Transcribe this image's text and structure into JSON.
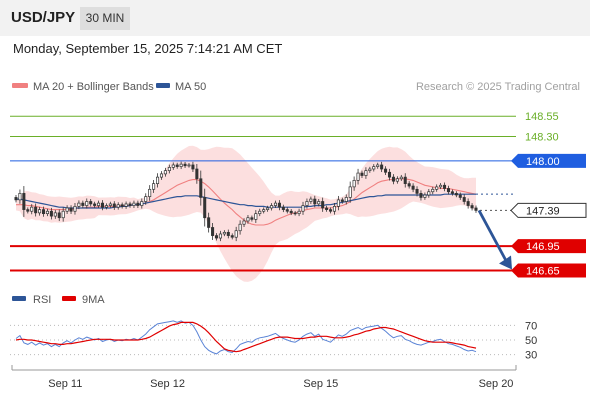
{
  "header": {
    "pair": "USD/JPY",
    "timeframe": "30 MIN"
  },
  "timestamp": "Monday, September 15, 2025 7:14:21 AM CET",
  "legend": {
    "ma20_label": "MA 20 + Bollinger Bands",
    "ma50_label": "MA 50",
    "source": "Research © 2025 Trading Central"
  },
  "rsi_legend": {
    "rsi_label": "RSI",
    "ma_label": "9MA"
  },
  "colors": {
    "ma20": "#f08080",
    "ma50": "#2d5597",
    "bands": "#fcd9d9",
    "target": "#6aaf28",
    "pivot": "#1f5ee0",
    "support": "#e00000",
    "arrow": "#2d5597",
    "candle": "#333333"
  },
  "chart_data": [
    {
      "type": "candlestick",
      "instrument": "USD/JPY",
      "interval": "30 MIN",
      "x_ticks": [
        "Sep 11",
        "Sep 12",
        "Sep 15",
        "Sep 20"
      ],
      "ylim": [
        146.57,
        148.75
      ],
      "levels": [
        {
          "label": "148.55",
          "value": 148.55,
          "role": "target"
        },
        {
          "label": "148.30",
          "value": 148.3,
          "role": "target"
        },
        {
          "label": "148.00",
          "value": 148.0,
          "role": "pivot"
        },
        {
          "label": "147.39",
          "value": 147.39,
          "role": "last"
        },
        {
          "label": "146.95",
          "value": 146.95,
          "role": "support"
        },
        {
          "label": "146.65",
          "value": 146.65,
          "role": "support"
        }
      ],
      "close": [
        147.52,
        147.6,
        147.4,
        147.38,
        147.43,
        147.36,
        147.4,
        147.35,
        147.38,
        147.32,
        147.36,
        147.3,
        147.38,
        147.42,
        147.38,
        147.44,
        147.48,
        147.45,
        147.5,
        147.47,
        147.45,
        147.48,
        147.43,
        147.45,
        147.47,
        147.43,
        147.46,
        147.44,
        147.47,
        147.45,
        147.48,
        147.45,
        147.5,
        147.56,
        147.65,
        147.72,
        147.8,
        147.84,
        147.88,
        147.92,
        147.95,
        147.93,
        147.96,
        147.94,
        147.95,
        147.9,
        147.78,
        147.55,
        147.3,
        147.18,
        147.08,
        147.05,
        147.1,
        147.12,
        147.08,
        147.06,
        147.14,
        147.22,
        147.26,
        147.3,
        147.28,
        147.35,
        147.38,
        147.4,
        147.42,
        147.45,
        147.48,
        147.43,
        147.4,
        147.38,
        147.36,
        147.35,
        147.38,
        147.45,
        147.5,
        147.53,
        147.47,
        147.5,
        147.42,
        147.4,
        147.38,
        147.44,
        147.52,
        147.5,
        147.55,
        147.68,
        147.76,
        147.85,
        147.82,
        147.88,
        147.9,
        147.93,
        147.95,
        147.9,
        147.86,
        147.8,
        147.75,
        147.78,
        147.8,
        147.72,
        147.69,
        147.65,
        147.6,
        147.55,
        147.58,
        147.62,
        147.65,
        147.68,
        147.7,
        147.66,
        147.62,
        147.6,
        147.58,
        147.55,
        147.5,
        147.45,
        147.42,
        147.39
      ],
      "ma20": [
        147.46,
        147.46,
        147.46,
        147.45,
        147.45,
        147.44,
        147.43,
        147.42,
        147.41,
        147.4,
        147.4,
        147.4,
        147.4,
        147.4,
        147.4,
        147.41,
        147.42,
        147.42,
        147.43,
        147.43,
        147.43,
        147.44,
        147.44,
        147.44,
        147.44,
        147.44,
        147.45,
        147.45,
        147.45,
        147.45,
        147.46,
        147.46,
        147.47,
        147.48,
        147.5,
        147.52,
        147.55,
        147.58,
        147.61,
        147.64,
        147.67,
        147.7,
        147.72,
        147.74,
        147.76,
        147.77,
        147.77,
        147.75,
        147.72,
        147.68,
        147.63,
        147.58,
        147.53,
        147.48,
        147.44,
        147.4,
        147.35,
        147.31,
        147.27,
        147.24,
        147.22,
        147.21,
        147.21,
        147.21,
        147.22,
        147.24,
        147.27,
        147.29,
        147.31,
        147.33,
        147.35,
        147.36,
        147.37,
        147.39,
        147.4,
        147.41,
        147.42,
        147.42,
        147.42,
        147.42,
        147.42,
        147.43,
        147.44,
        147.45,
        147.47,
        147.5,
        147.53,
        147.57,
        147.61,
        147.64,
        147.67,
        147.7,
        147.73,
        147.75,
        147.76,
        147.77,
        147.77,
        147.78,
        147.78,
        147.78,
        147.77,
        147.76,
        147.74,
        147.72,
        147.7,
        147.69,
        147.68,
        147.67,
        147.66,
        147.66,
        147.66,
        147.65,
        147.64,
        147.63,
        147.62,
        147.61,
        147.6,
        147.59
      ],
      "ma50": [
        147.53,
        147.53,
        147.52,
        147.51,
        147.5,
        147.49,
        147.48,
        147.47,
        147.46,
        147.45,
        147.44,
        147.43,
        147.43,
        147.42,
        147.42,
        147.42,
        147.42,
        147.42,
        147.42,
        147.42,
        147.42,
        147.42,
        147.42,
        147.42,
        147.42,
        147.43,
        147.43,
        147.44,
        147.44,
        147.45,
        147.46,
        147.46,
        147.47,
        147.48,
        147.49,
        147.5,
        147.51,
        147.52,
        147.53,
        147.54,
        147.55,
        147.56,
        147.56,
        147.57,
        147.57,
        147.57,
        147.57,
        147.56,
        147.55,
        147.54,
        147.53,
        147.52,
        147.51,
        147.5,
        147.49,
        147.48,
        147.47,
        147.46,
        147.46,
        147.45,
        147.45,
        147.44,
        147.44,
        147.44,
        147.43,
        147.43,
        147.43,
        147.43,
        147.43,
        147.43,
        147.43,
        147.43,
        147.43,
        147.43,
        147.44,
        147.44,
        147.45,
        147.45,
        147.45,
        147.46,
        147.46,
        147.47,
        147.48,
        147.49,
        147.5,
        147.51,
        147.52,
        147.53,
        147.54,
        147.55,
        147.56,
        147.56,
        147.57,
        147.57,
        147.58,
        147.58,
        147.58,
        147.58,
        147.58,
        147.58,
        147.58,
        147.58,
        147.58,
        147.58,
        147.58,
        147.58,
        147.58,
        147.58,
        147.58,
        147.59,
        147.59,
        147.59,
        147.59,
        147.59,
        147.59,
        147.59,
        147.59,
        147.59
      ]
    },
    {
      "type": "line",
      "name_label": "RSI",
      "y_ticks": [
        "70",
        "50",
        "30"
      ],
      "ylim": [
        20,
        80
      ],
      "rsi": [
        52,
        56,
        46,
        44,
        47,
        43,
        46,
        43,
        45,
        41,
        44,
        41,
        46,
        49,
        46,
        50,
        53,
        51,
        54,
        52,
        50,
        52,
        48,
        50,
        51,
        48,
        50,
        49,
        51,
        50,
        52,
        50,
        54,
        58,
        64,
        68,
        72,
        73,
        74,
        75,
        76,
        74,
        76,
        73,
        74,
        70,
        61,
        50,
        41,
        36,
        33,
        31,
        35,
        37,
        34,
        33,
        38,
        44,
        46,
        48,
        47,
        51,
        53,
        54,
        55,
        57,
        59,
        55,
        52,
        50,
        48,
        47,
        50,
        55,
        58,
        60,
        55,
        58,
        51,
        49,
        47,
        52,
        57,
        55,
        58,
        63,
        65,
        67,
        64,
        67,
        68,
        69,
        70,
        66,
        62,
        57,
        53,
        55,
        56,
        51,
        49,
        46,
        44,
        43,
        45,
        47,
        48,
        50,
        51,
        48,
        45,
        44,
        42,
        40,
        37,
        35,
        36,
        34
      ],
      "ma9": [
        50,
        51,
        51,
        50,
        50,
        49,
        48,
        47,
        46,
        45,
        45,
        44,
        44,
        45,
        45,
        46,
        47,
        48,
        49,
        50,
        51,
        51,
        51,
        51,
        51,
        50,
        50,
        50,
        50,
        50,
        50,
        50,
        51,
        52,
        54,
        57,
        60,
        63,
        66,
        69,
        71,
        72,
        74,
        74,
        74,
        74,
        72,
        69,
        65,
        60,
        54,
        48,
        43,
        38,
        36,
        35,
        34,
        35,
        37,
        39,
        41,
        43,
        45,
        47,
        49,
        51,
        53,
        54,
        54,
        54,
        53,
        52,
        52,
        52,
        53,
        54,
        54,
        55,
        55,
        55,
        54,
        53,
        53,
        53,
        54,
        55,
        57,
        58,
        60,
        62,
        63,
        65,
        66,
        67,
        67,
        66,
        65,
        63,
        61,
        59,
        57,
        55,
        53,
        51,
        49,
        48,
        47,
        47,
        47,
        47,
        47,
        46,
        45,
        44,
        43,
        41,
        40,
        39
      ]
    }
  ]
}
